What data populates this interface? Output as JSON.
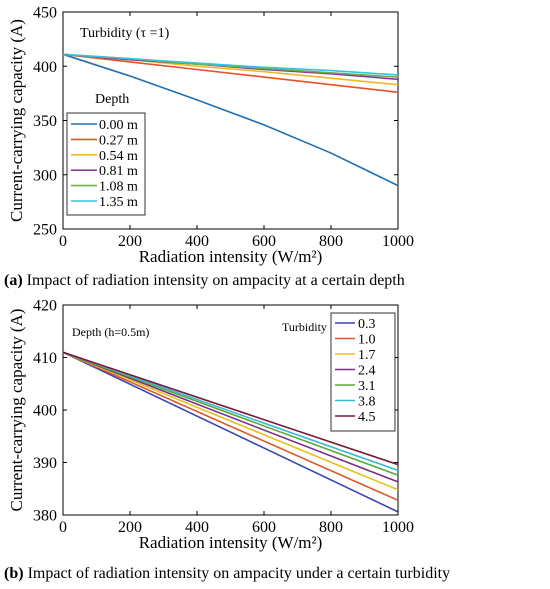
{
  "chart_data": [
    {
      "type": "line",
      "annotation": "Turbidity (τ =1)",
      "xlabel": "Radiation intensity (W/m²)",
      "ylabel": "Current-carrying capacity (A)",
      "xlim": [
        0,
        1000
      ],
      "ylim": [
        250,
        450
      ],
      "xticks": [
        0,
        200,
        400,
        600,
        800,
        1000
      ],
      "yticks": [
        250,
        300,
        350,
        400,
        450
      ],
      "legend_title": "Depth",
      "legend_position": "center-left",
      "grid": false,
      "x": [
        0,
        200,
        400,
        600,
        800,
        1000
      ],
      "series": [
        {
          "name": "0.00 m",
          "color": "#1f6fb0",
          "values": [
            411,
            391,
            369,
            346,
            320,
            290
          ]
        },
        {
          "name": "0.27 m",
          "color": "#e8502a",
          "values": [
            411,
            404,
            397,
            390,
            383,
            376
          ]
        },
        {
          "name": "0.54 m",
          "color": "#f2b824",
          "values": [
            411,
            406,
            400,
            395,
            389,
            383
          ]
        },
        {
          "name": "0.81 m",
          "color": "#8b3a96",
          "values": [
            411,
            406,
            402,
            397,
            393,
            388
          ]
        },
        {
          "name": "1.08 m",
          "color": "#6ab04c",
          "values": [
            411,
            407,
            402,
            398,
            394,
            390
          ]
        },
        {
          "name": "1.35 m",
          "color": "#35c3dc",
          "values": [
            411,
            407,
            403,
            399,
            396,
            392
          ]
        }
      ]
    },
    {
      "type": "line",
      "annotation": "Depth (h=0.5m)",
      "xlabel": "Radiation intensity (W/m²)",
      "ylabel": "Current-carrying capacity (A)",
      "xlim": [
        0,
        1000
      ],
      "ylim": [
        380,
        420
      ],
      "xticks": [
        0,
        200,
        400,
        600,
        800,
        1000
      ],
      "yticks": [
        380,
        390,
        400,
        410,
        420
      ],
      "legend_title": "Turbidity",
      "legend_position": "top-right",
      "grid": false,
      "x": [
        0,
        1000
      ],
      "series": [
        {
          "name": "0.3",
          "color": "#3a47b0",
          "values": [
            411,
            380.6
          ]
        },
        {
          "name": "1.0",
          "color": "#d85a2a",
          "values": [
            411,
            382.8
          ]
        },
        {
          "name": "1.7",
          "color": "#e8c020",
          "values": [
            411,
            384.8
          ]
        },
        {
          "name": "2.4",
          "color": "#7a2e86",
          "values": [
            411,
            386.3
          ]
        },
        {
          "name": "3.1",
          "color": "#5aa83a",
          "values": [
            411,
            387.6
          ]
        },
        {
          "name": "3.8",
          "color": "#3ab8d8",
          "values": [
            411,
            388.5
          ]
        },
        {
          "name": "4.5",
          "color": "#7a1838",
          "values": [
            411,
            389.6
          ]
        }
      ]
    }
  ],
  "captions": {
    "a_prefix": "(a)",
    "a_text": " Impact of radiation intensity on ampacity at a certain depth",
    "b_prefix": "(b)",
    "b_text": " Impact of radiation intensity on ampacity under a certain turbidity"
  }
}
